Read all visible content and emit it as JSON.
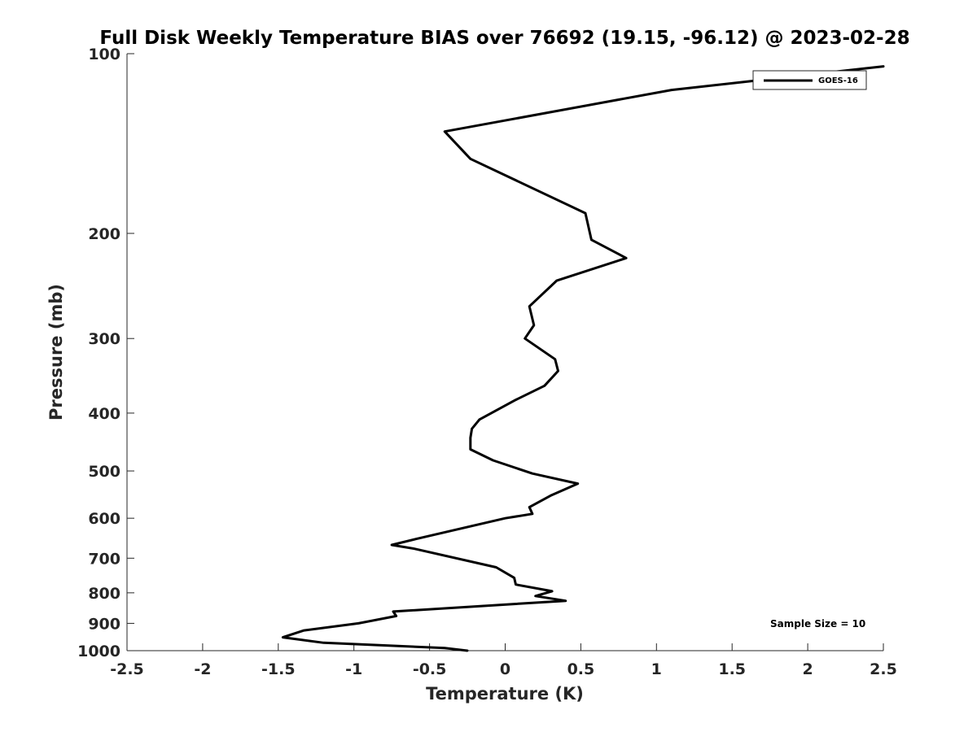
{
  "chart_data": {
    "type": "line",
    "title": "Full Disk Weekly Temperature BIAS over 76692 (19.15, -96.12) @ 2023-02-28",
    "xlabel": "Temperature (K)",
    "ylabel": "Pressure (mb)",
    "xlim": [
      -2.5,
      2.5
    ],
    "ylim": [
      1000,
      100
    ],
    "y_scale": "log",
    "y_reversed": true,
    "grid": false,
    "x_ticks": [
      -2.5,
      -2,
      -1.5,
      -1,
      -0.5,
      0,
      0.5,
      1,
      1.5,
      2,
      2.5
    ],
    "x_tick_labels": [
      "-2.5",
      "-2",
      "-1.5",
      "-1",
      "-0.5",
      "0",
      "0.5",
      "1",
      "1.5",
      "2",
      "2.5"
    ],
    "y_ticks": [
      100,
      200,
      300,
      400,
      500,
      600,
      700,
      800,
      900,
      1000
    ],
    "y_tick_labels": [
      "100",
      "200",
      "300",
      "400",
      "500",
      "600",
      "700",
      "800",
      "900",
      "1000"
    ],
    "legend": {
      "placement": "top-right",
      "entries": [
        "GOES-16"
      ]
    },
    "annotation": "Sample Size = 10",
    "series": [
      {
        "name": "GOES-16",
        "color": "#000000",
        "points": [
          [
            -0.25,
            1000
          ],
          [
            -0.4,
            990
          ],
          [
            -1.2,
            970
          ],
          [
            -1.47,
            950
          ],
          [
            -1.33,
            925
          ],
          [
            -0.97,
            900
          ],
          [
            -0.72,
            875
          ],
          [
            -0.74,
            860
          ],
          [
            0.4,
            825
          ],
          [
            0.2,
            810
          ],
          [
            0.31,
            795
          ],
          [
            0.07,
            775
          ],
          [
            0.06,
            755
          ],
          [
            -0.06,
            725
          ],
          [
            -0.6,
            675
          ],
          [
            -0.75,
            665
          ],
          [
            -0.59,
            650
          ],
          [
            0.0,
            600
          ],
          [
            0.18,
            590
          ],
          [
            0.16,
            575
          ],
          [
            0.3,
            550
          ],
          [
            0.48,
            525
          ],
          [
            0.18,
            505
          ],
          [
            -0.08,
            480
          ],
          [
            -0.23,
            460
          ],
          [
            -0.23,
            440
          ],
          [
            -0.22,
            425
          ],
          [
            -0.17,
            410
          ],
          [
            0.07,
            380
          ],
          [
            0.26,
            360
          ],
          [
            0.35,
            340
          ],
          [
            0.33,
            325
          ],
          [
            0.13,
            300
          ],
          [
            0.19,
            285
          ],
          [
            0.16,
            265
          ],
          [
            0.34,
            240
          ],
          [
            0.8,
            220
          ],
          [
            0.57,
            205
          ],
          [
            0.53,
            185
          ],
          [
            -0.23,
            150
          ],
          [
            -0.4,
            135
          ],
          [
            1.1,
            115
          ],
          [
            2.5,
            105
          ]
        ]
      }
    ]
  }
}
